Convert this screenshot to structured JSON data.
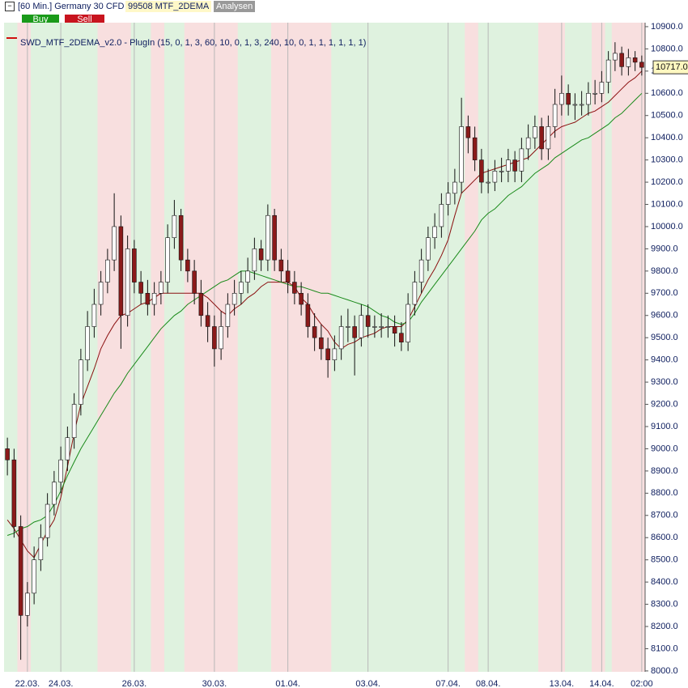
{
  "header": {
    "instrument": "[60 Min.] Germany 30 CFD",
    "indicator": "99508 MTF_2DEMA",
    "analysen": "Analysen",
    "buy": "Buy",
    "sell": "Sell"
  },
  "chart_data": {
    "type": "candlestick",
    "legend": "SWD_MTF_2DEMA_v2.0 - PlugIn  (15, 0, 1, 3, 60, 10, 0, 1, 3, 240, 10, 0, 1, 1, 1, 1, 1, 1)",
    "categories": [
      null,
      null,
      null,
      "22.03.",
      null,
      null,
      null,
      null,
      "24.03.",
      null,
      null,
      null,
      null,
      null,
      null,
      null,
      null,
      null,
      null,
      "26.03.",
      null,
      null,
      null,
      null,
      null,
      null,
      null,
      null,
      null,
      null,
      null,
      "30.03.",
      null,
      null,
      null,
      null,
      null,
      null,
      null,
      null,
      null,
      null,
      "01.04.",
      null,
      null,
      null,
      null,
      null,
      null,
      null,
      null,
      null,
      null,
      null,
      "03.04.",
      null,
      null,
      null,
      null,
      null,
      null,
      null,
      null,
      null,
      null,
      null,
      "07.04.",
      null,
      null,
      null,
      null,
      null,
      "08.04.",
      null,
      null,
      null,
      null,
      null,
      null,
      null,
      null,
      null,
      null,
      "13.04.",
      null,
      null,
      null,
      null,
      null,
      "14.04.",
      null,
      null,
      null,
      null,
      null,
      "02:00"
    ],
    "open": [
      9000,
      8950,
      8650,
      8250,
      8350,
      8500,
      8600,
      8750,
      8850,
      8950,
      9050,
      9200,
      9400,
      9550,
      9650,
      9750,
      9850,
      10000,
      9600,
      9900,
      9750,
      9700,
      9650,
      9700,
      9750,
      9950,
      10050,
      9850,
      9800,
      9700,
      9600,
      9550,
      9450,
      9550,
      9650,
      9700,
      9750,
      9800,
      9900,
      9850,
      10050,
      9850,
      9800,
      9750,
      9700,
      9650,
      9550,
      9500,
      9450,
      9400,
      9450,
      9550,
      9550,
      9500,
      9600,
      9550,
      9550,
      9550,
      9550,
      9520,
      9480,
      9650,
      9750,
      9850,
      9950,
      10000,
      10100,
      10150,
      10200,
      10450,
      10400,
      10300,
      10200,
      10200,
      10250,
      10250,
      10300,
      10250,
      10350,
      10400,
      10450,
      10350,
      10450,
      10550,
      10600,
      10550,
      10550,
      10550,
      10600,
      10600,
      10650,
      10750,
      10780,
      10720,
      10760,
      10740
    ],
    "high": [
      9050,
      9000,
      8700,
      8400,
      8560,
      8660,
      8800,
      8900,
      9010,
      9100,
      9250,
      9450,
      9620,
      9720,
      9800,
      9900,
      10150,
      10050,
      9960,
      9940,
      9800,
      9760,
      9750,
      9800,
      10010,
      10120,
      10080,
      9900,
      9850,
      9760,
      9660,
      9600,
      9620,
      9700,
      9760,
      9800,
      9860,
      9950,
      9940,
      10100,
      10080,
      9900,
      9850,
      9800,
      9750,
      9700,
      9610,
      9560,
      9500,
      9510,
      9600,
      9630,
      9600,
      9650,
      9650,
      9600,
      9610,
      9600,
      9600,
      9570,
      9700,
      9800,
      9900,
      10000,
      10060,
      10150,
      10200,
      10260,
      10580,
      10500,
      10450,
      10350,
      10260,
      10300,
      10310,
      10350,
      10340,
      10400,
      10460,
      10500,
      10490,
      10500,
      10620,
      10680,
      10640,
      10600,
      10610,
      10650,
      10660,
      10700,
      10790,
      10830,
      10810,
      10800,
      10790,
      10770
    ],
    "low": [
      8880,
      8600,
      8050,
      8200,
      8300,
      8450,
      8560,
      8700,
      8800,
      8900,
      9000,
      9150,
      9350,
      9500,
      9600,
      9700,
      9800,
      9450,
      9550,
      9700,
      9650,
      9600,
      9600,
      9650,
      9700,
      9900,
      9800,
      9750,
      9650,
      9550,
      9480,
      9370,
      9400,
      9500,
      9600,
      9650,
      9700,
      9760,
      9800,
      9800,
      9800,
      9750,
      9700,
      9650,
      9600,
      9500,
      9440,
      9400,
      9320,
      9350,
      9400,
      9480,
      9330,
      9460,
      9500,
      9500,
      9500,
      9500,
      9460,
      9440,
      9440,
      9600,
      9700,
      9800,
      9900,
      9950,
      10050,
      10100,
      10150,
      10330,
      10250,
      10150,
      10150,
      10160,
      10200,
      10200,
      10200,
      10200,
      10300,
      10350,
      10300,
      10300,
      10400,
      10500,
      10500,
      10480,
      10500,
      10500,
      10550,
      10560,
      10600,
      10700,
      10680,
      10680,
      10700,
      10680
    ],
    "close": [
      8950,
      8650,
      8250,
      8350,
      8500,
      8600,
      8750,
      8850,
      8950,
      9050,
      9200,
      9400,
      9550,
      9650,
      9750,
      9850,
      10000,
      9600,
      9900,
      9750,
      9700,
      9650,
      9700,
      9750,
      9950,
      10050,
      9850,
      9800,
      9700,
      9600,
      9550,
      9450,
      9550,
      9650,
      9700,
      9750,
      9800,
      9900,
      9850,
      10050,
      9850,
      9800,
      9750,
      9700,
      9650,
      9550,
      9500,
      9450,
      9400,
      9450,
      9550,
      9550,
      9500,
      9600,
      9550,
      9550,
      9550,
      9550,
      9520,
      9480,
      9650,
      9750,
      9850,
      9950,
      10000,
      10100,
      10150,
      10200,
      10450,
      10400,
      10300,
      10200,
      10200,
      10250,
      10250,
      10300,
      10250,
      10350,
      10400,
      10450,
      10350,
      10450,
      10550,
      10600,
      10550,
      10550,
      10550,
      10600,
      10600,
      10650,
      10750,
      10780,
      10720,
      10760,
      10740,
      10717
    ],
    "signals": [
      "buy",
      "buy",
      "sell",
      "sell",
      "buy",
      "buy",
      "buy",
      "buy",
      "buy",
      "buy",
      "buy",
      "buy",
      "buy",
      "buy",
      "sell",
      "sell",
      "sell",
      "sell",
      "sell",
      "buy",
      "buy",
      "buy",
      "sell",
      "sell",
      "buy",
      "buy",
      "buy",
      "sell",
      "sell",
      "sell",
      "sell",
      "sell",
      "sell",
      "sell",
      "sell",
      "buy",
      "buy",
      "buy",
      "buy",
      "buy",
      "sell",
      "sell",
      "sell",
      "sell",
      "sell",
      "sell",
      "sell",
      "sell",
      "sell",
      "buy",
      "buy",
      "buy",
      "buy",
      "buy",
      "buy",
      "buy",
      "buy",
      "buy",
      "buy",
      "buy",
      "buy",
      "buy",
      "buy",
      "buy",
      "buy",
      "buy",
      "buy",
      "buy",
      "buy",
      "sell",
      "sell",
      "buy",
      "buy",
      "buy",
      "buy",
      "buy",
      "buy",
      "buy",
      "buy",
      "buy",
      "sell",
      "sell",
      "sell",
      "sell",
      "buy",
      "buy",
      "buy",
      "buy",
      "sell",
      "sell",
      "buy",
      "sell",
      "sell",
      "sell",
      "sell",
      "sell"
    ],
    "signal_colors": {
      "buy": "#dff2df",
      "sell": "#f8dfdf"
    },
    "up_color": "#ffffff",
    "down_color": "#8b1a1a",
    "lines": [
      {
        "color": "#8b1010",
        "values": [
          8680,
          8640,
          8590,
          8540,
          8510,
          8570,
          8630,
          8680,
          8780,
          8920,
          9070,
          9200,
          9280,
          9360,
          9450,
          9510,
          9560,
          9600,
          9610,
          9630,
          9650,
          9660,
          9680,
          9700,
          9700,
          9700,
          9700,
          9700,
          9700,
          9700,
          9680,
          9650,
          9620,
          9600,
          9630,
          9650,
          9680,
          9700,
          9730,
          9750,
          9750,
          9750,
          9750,
          9730,
          9680,
          9650,
          9600,
          9560,
          9530,
          9480,
          9450,
          9470,
          9480,
          9500,
          9510,
          9520,
          9540,
          9550,
          9550,
          9550,
          9580,
          9640,
          9700,
          9760,
          9810,
          9870,
          9940,
          10050,
          10150,
          10180,
          10210,
          10240,
          10250,
          10260,
          10270,
          10280,
          10290,
          10300,
          10310,
          10340,
          10370,
          10400,
          10430,
          10450,
          10460,
          10470,
          10490,
          10510,
          10520,
          10540,
          10560,
          10590,
          10620,
          10650,
          10670,
          10700
        ]
      },
      {
        "color": "#1a8a1a",
        "values": [
          8610,
          8620,
          8640,
          8650,
          8670,
          8680,
          8700,
          8750,
          8810,
          8880,
          8940,
          9000,
          9050,
          9100,
          9150,
          9200,
          9250,
          9290,
          9340,
          9380,
          9420,
          9460,
          9500,
          9540,
          9570,
          9600,
          9620,
          9650,
          9670,
          9690,
          9710,
          9730,
          9750,
          9760,
          9780,
          9800,
          9800,
          9790,
          9780,
          9770,
          9760,
          9750,
          9740,
          9730,
          9730,
          9720,
          9710,
          9700,
          9700,
          9690,
          9680,
          9670,
          9660,
          9650,
          9640,
          9620,
          9600,
          9590,
          9570,
          9560,
          9570,
          9610,
          9660,
          9700,
          9740,
          9780,
          9820,
          9860,
          9900,
          9940,
          9980,
          10030,
          10060,
          10080,
          10110,
          10140,
          10160,
          10180,
          10210,
          10240,
          10260,
          10280,
          10310,
          10330,
          10350,
          10370,
          10390,
          10400,
          10420,
          10440,
          10460,
          10490,
          10510,
          10540,
          10570,
          10600
        ]
      }
    ],
    "last_price": {
      "value": 10717,
      "label": "10717.0"
    },
    "ylim": [
      7996,
      10918
    ],
    "yticks": [
      {
        "value": 8000,
        "label": "8000.0"
      },
      {
        "value": 8100,
        "label": "8100.0"
      },
      {
        "value": 8200,
        "label": "8200.0"
      },
      {
        "value": 8300,
        "label": "8300.0"
      },
      {
        "value": 8400,
        "label": "8400.0"
      },
      {
        "value": 8500,
        "label": "8500.0"
      },
      {
        "value": 8600,
        "label": "8600.0"
      },
      {
        "value": 8700,
        "label": "8700.0"
      },
      {
        "value": 8800,
        "label": "8800.0"
      },
      {
        "value": 8900,
        "label": "8900.0"
      },
      {
        "value": 9000,
        "label": "9000.0"
      },
      {
        "value": 9100,
        "label": "9100.0"
      },
      {
        "value": 9200,
        "label": "9200.0"
      },
      {
        "value": 9300,
        "label": "9300.0"
      },
      {
        "value": 9400,
        "label": "9400.0"
      },
      {
        "value": 9500,
        "label": "9500.0"
      },
      {
        "value": 9600,
        "label": "9600.0"
      },
      {
        "value": 9700,
        "label": "9700.0"
      },
      {
        "value": 9800,
        "label": "9800.0"
      },
      {
        "value": 9900,
        "label": "9900.0"
      },
      {
        "value": 10000,
        "label": "10000.0"
      },
      {
        "value": 10100,
        "label": "10100.0"
      },
      {
        "value": 10200,
        "label": "10200.0"
      },
      {
        "value": 10300,
        "label": "10300.0"
      },
      {
        "value": 10400,
        "label": "10400.0"
      },
      {
        "value": 10500,
        "label": "10500.0"
      },
      {
        "value": 10600,
        "label": "10600.0"
      },
      {
        "value": 10700,
        "label": "10700.0"
      },
      {
        "value": 10800,
        "label": "10800.0"
      },
      {
        "value": 10900,
        "label": "10900.0"
      }
    ]
  }
}
